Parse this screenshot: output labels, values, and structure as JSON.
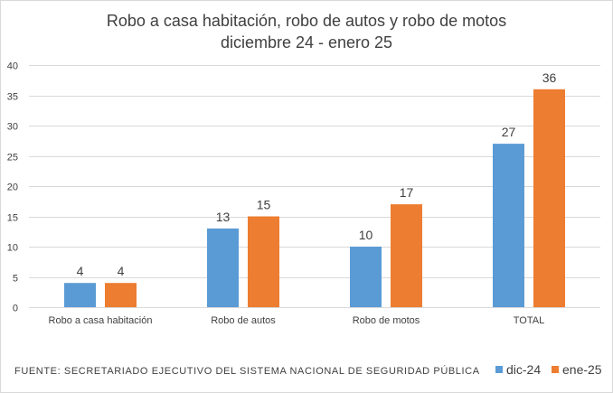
{
  "chart_data": {
    "type": "bar",
    "title_lines": [
      "Robo a casa habitación, robo de autos y robo de motos",
      "diciembre 24 - enero 25"
    ],
    "categories": [
      "Robo a casa habitación",
      "Robo de autos",
      "Robo de motos",
      "TOTAL"
    ],
    "series": [
      {
        "name": "dic-24",
        "color": "#5b9bd5",
        "values": [
          4,
          13,
          10,
          27
        ]
      },
      {
        "name": "ene-25",
        "color": "#ed7d31",
        "values": [
          4,
          15,
          17,
          36
        ]
      }
    ],
    "ylim": [
      0,
      40
    ],
    "yticks": [
      0,
      5,
      10,
      15,
      20,
      25,
      30,
      35,
      40
    ],
    "grid": true,
    "legend_position": "bottom-right",
    "data_labels": true
  },
  "source_note": "FUENTE:  SECRETARIADO  EJECUTIVO  DEL SISTEMA  NACIONAL  DE SEGURIDAD  PÚBLICA"
}
